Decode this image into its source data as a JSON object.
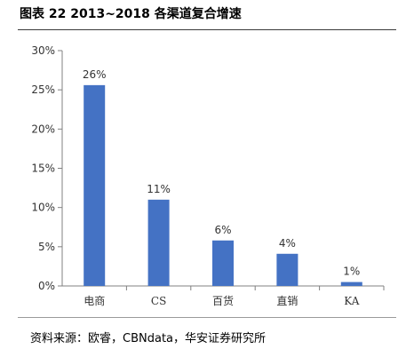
{
  "figure": {
    "title": "图表 22 2013~2018 各渠道复合增速",
    "source": "资料来源：欧睿，CBNdata，华安证券研究所"
  },
  "colors": {
    "bar": "#4472C4",
    "axis": "#808080",
    "text": "#333333"
  },
  "chart_data": {
    "type": "bar",
    "title": "",
    "xlabel": "",
    "ylabel": "",
    "categories": [
      "电商",
      "CS",
      "百货",
      "直销",
      "KA"
    ],
    "values": [
      25.6,
      11,
      5.8,
      4.1,
      0.5
    ],
    "data_labels": [
      "26%",
      "11%",
      "6%",
      "4%",
      "1%"
    ],
    "ylim": [
      0,
      30
    ],
    "y_ticks": [
      "0%",
      "5%",
      "10%",
      "15%",
      "20%",
      "25%",
      "30%"
    ],
    "y_tick_values": [
      0,
      5,
      10,
      15,
      20,
      25,
      30
    ],
    "grid": false,
    "legend": "none"
  }
}
